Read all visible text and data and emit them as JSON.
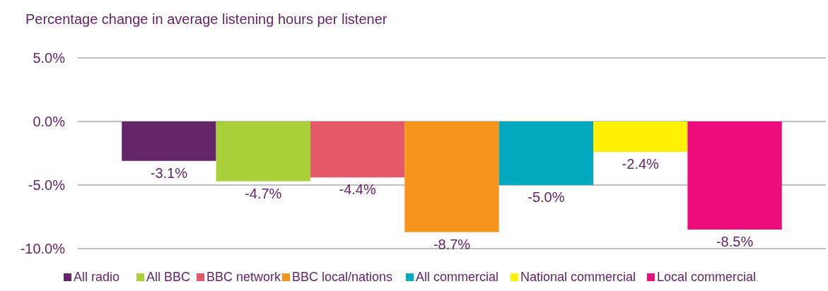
{
  "chart_data": {
    "type": "bar",
    "title": "Percentage change in average listening hours per listener",
    "categories": [
      null
    ],
    "series": [
      {
        "name": "All radio",
        "color": "#622565",
        "values": [
          -3.1
        ],
        "value_labels": [
          "-3.1%"
        ]
      },
      {
        "name": "All BBC",
        "color": "#a9d038",
        "values": [
          -4.7
        ],
        "value_labels": [
          "-4.7%"
        ]
      },
      {
        "name": "BBC network",
        "color": "#e45868",
        "values": [
          -4.4
        ],
        "value_labels": [
          "-4.4%"
        ]
      },
      {
        "name": "BBC local/nations",
        "color": "#f7941e",
        "values": [
          -8.7
        ],
        "value_labels": [
          "-8.7%"
        ]
      },
      {
        "name": "All commercial",
        "color": "#00a9bd",
        "values": [
          -5.0
        ],
        "value_labels": [
          "-5.0%"
        ]
      },
      {
        "name": "National commercial",
        "color": "#fff200",
        "values": [
          -2.4
        ],
        "value_labels": [
          "-2.4%"
        ]
      },
      {
        "name": "Local commercial",
        "color": "#ec0c7c",
        "values": [
          -8.5
        ],
        "value_labels": [
          "-8.5%"
        ]
      }
    ],
    "ylim": [
      -10,
      5
    ],
    "yticks": [
      {
        "value": 5,
        "label": "5.0%"
      },
      {
        "value": 0,
        "label": "0.0%"
      },
      {
        "value": -5,
        "label": "-5.0%"
      },
      {
        "value": -10,
        "label": "-10.0%"
      }
    ],
    "grid": "y",
    "legend": "bottom"
  }
}
